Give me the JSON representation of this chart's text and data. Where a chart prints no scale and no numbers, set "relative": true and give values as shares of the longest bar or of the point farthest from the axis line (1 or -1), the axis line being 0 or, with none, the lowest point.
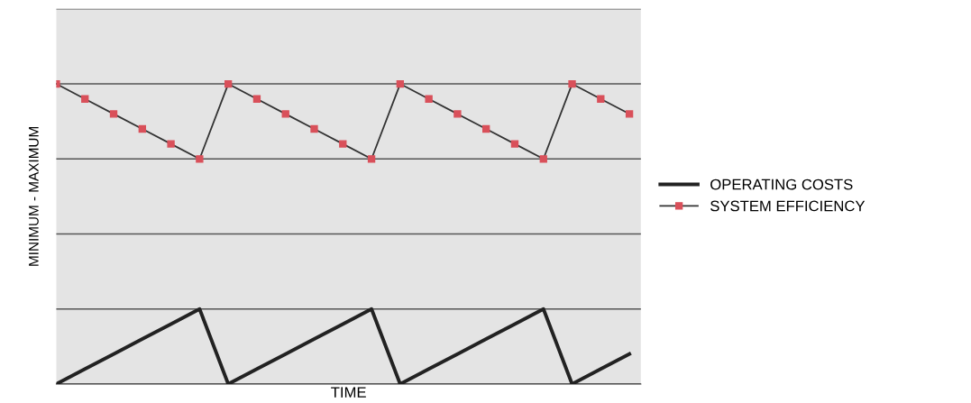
{
  "chart_data": {
    "type": "line",
    "relative": true,
    "xlabel": "TIME",
    "ylabel": "MINIMUM - MAXIMUM",
    "categories": [
      null,
      null,
      null,
      null,
      null,
      null,
      null,
      null,
      null,
      null,
      null,
      null,
      null,
      null,
      null,
      null,
      null,
      null,
      null,
      null,
      null
    ],
    "series": [
      {
        "name": "OPERATING COSTS",
        "color": "#222222",
        "marker": "none",
        "values": [
          0,
          0.05,
          0.1,
          0.15,
          0.2,
          0.25,
          0,
          0.05,
          0.1,
          0.15,
          0.2,
          0.25,
          0,
          0.05,
          0.1,
          0.15,
          0.2,
          0.25,
          0,
          0.05,
          0.1
        ]
      },
      {
        "name": "SYSTEM EFFICIENCY",
        "color": "#d9505a",
        "marker": "square",
        "values": [
          1,
          0.95,
          0.9,
          0.85,
          0.8,
          0.75,
          1,
          0.95,
          0.9,
          0.85,
          0.8,
          0.75,
          1,
          0.95,
          0.9,
          0.85,
          0.8,
          0.75,
          1,
          0.95,
          0.9
        ]
      }
    ],
    "grid": "y",
    "legend": "right",
    "tick_labels": false,
    "line_style": "solid"
  }
}
